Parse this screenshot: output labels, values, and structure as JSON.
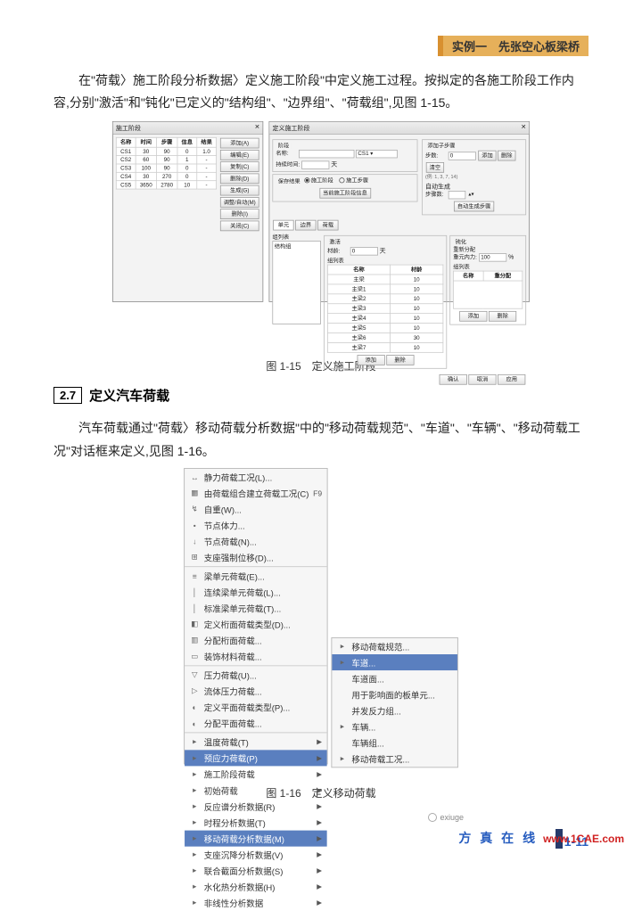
{
  "header": {
    "title": "实例一　先张空心板梁桥"
  },
  "para1": "在\"荷载〉施工阶段分析数据〉定义施工阶段\"中定义施工过程。按拟定的各施工阶段工作内容,分别\"激活\"和\"钝化\"已定义的\"结构组\"、\"边界组\"、\"荷载组\",见图 1-15。",
  "dlg115": {
    "leftTitle": "施工阶段",
    "tableHeaders": [
      "名称",
      "时间",
      "步骤",
      "信息",
      "结果"
    ],
    "tableRows": [
      [
        "CS1",
        "30",
        "90",
        "0",
        "1.0"
      ],
      [
        "CS2",
        "60",
        "90",
        "1",
        "-"
      ],
      [
        "CS3",
        "100",
        "90",
        "0",
        "-"
      ],
      [
        "CS4",
        "30",
        "270",
        "0",
        "-"
      ],
      [
        "CS5",
        "3650",
        "2780",
        "10",
        "-"
      ]
    ],
    "leftButtons": [
      "添加(A)",
      "编辑(E)",
      "复制(C)",
      "删除(D)",
      "生成(G)",
      "调整/自动(M)",
      "删除(I)",
      "关闭(C)"
    ],
    "rightTitle": "定义施工阶段",
    "stage": {
      "label": "阶段",
      "name": "名称:",
      "nameVal": "",
      "durLabel": "持续时间:",
      "durVal": "",
      "days": "天"
    },
    "save": {
      "label": "保存结果",
      "opt1": "施工阶段",
      "opt2": "施工步骤",
      "btn": "当前施工阶段信息"
    },
    "addStep": {
      "title": "添加子步骤",
      "stepCount": "步数:",
      "stepVal": "0",
      "ex": "(例: 1, 3, 7, 14)",
      "autoGen": "自动生成",
      "stepNum": "步骤数:",
      "btns": [
        "添加",
        "删除",
        "清空"
      ],
      "autoBtn": "自动生成步骤"
    },
    "tabs": [
      "单元",
      "边界",
      "荷载"
    ],
    "groupList": "组列表",
    "activate": {
      "title": "激活",
      "life": "材龄:",
      "lifeVal": "0",
      "days": "天",
      "listTitle": "组列表",
      "cols": [
        "名称",
        "材龄"
      ],
      "rows": [
        [
          "主梁",
          "10"
        ],
        [
          "主梁1",
          "10"
        ],
        [
          "主梁2",
          "10"
        ],
        [
          "主梁3",
          "10"
        ],
        [
          "主梁4",
          "10"
        ],
        [
          "主梁5",
          "10"
        ],
        [
          "主梁6",
          "30"
        ],
        [
          "主梁7",
          "10"
        ]
      ],
      "btns": [
        "添加",
        "删除"
      ]
    },
    "deactivate": {
      "title": "钝化",
      "redis": "重新分配",
      "force": "重元内力:",
      "val": "100",
      "pct": "%",
      "listTitle": "组列表",
      "cols": [
        "名称",
        "重分配"
      ],
      "btns": [
        "添加",
        "删除"
      ]
    },
    "footerBtns": [
      "确认",
      "取消",
      "应用"
    ]
  },
  "cap115": "图 1-15　定义施工阶段",
  "section": {
    "num": "2.7",
    "title": "定义汽车荷载"
  },
  "para2": "汽车荷载通过\"荷载〉移动荷载分析数据\"中的\"移动荷载规范\"、\"车道\"、\"车辆\"、\"移动荷载工况\"对话框来定义,见图 1-16。",
  "menu": {
    "items": [
      {
        "ico": "↔",
        "label": "静力荷载工况(L)..."
      },
      {
        "ico": "▦",
        "label": "由荷载组合建立荷载工况(C)",
        "sc": "F9"
      },
      {
        "ico": "↯",
        "label": "自重(W)..."
      },
      {
        "ico": "•",
        "label": "节点体力..."
      },
      {
        "ico": "↓",
        "label": "节点荷载(N)..."
      },
      {
        "ico": "⊞",
        "label": "支座强制位移(D)..."
      },
      {
        "sep": true
      },
      {
        "ico": "≡",
        "label": "梁单元荷载(E)..."
      },
      {
        "ico": "│",
        "label": "连续梁单元荷载(L)..."
      },
      {
        "ico": "│",
        "label": "标准梁单元荷载(T)..."
      },
      {
        "ico": "◧",
        "label": "定义桁面荷载类型(D)..."
      },
      {
        "ico": "▥",
        "label": "分配桁面荷载..."
      },
      {
        "ico": "▭",
        "label": "装饰材料荷载..."
      },
      {
        "sep": true
      },
      {
        "ico": "▽",
        "label": "压力荷载(U)..."
      },
      {
        "ico": "▷",
        "label": "流体压力荷载..."
      },
      {
        "ico": "◐",
        "label": "定义平面荷载类型(P)..."
      },
      {
        "ico": "◐",
        "label": "分配平面荷载..."
      },
      {
        "sep": true
      },
      {
        "ico": "▸",
        "label": "温度荷载(T)",
        "arrow": true
      },
      {
        "ico": "▸",
        "label": "预应力荷载(P)",
        "arrow": true,
        "hl": true
      },
      {
        "ico": "▸",
        "label": "施工阶段荷载",
        "arrow": true
      },
      {
        "ico": "▸",
        "label": "初始荷载",
        "arrow": true
      },
      {
        "ico": "▸",
        "label": "反应谱分析数据(R)",
        "arrow": true
      },
      {
        "ico": "▸",
        "label": "时程分析数据(T)",
        "arrow": true
      },
      {
        "ico": "▸",
        "label": "移动荷载分析数据(M)",
        "arrow": true,
        "hl": true
      },
      {
        "ico": "▸",
        "label": "支座沉降分析数据(V)",
        "arrow": true
      },
      {
        "ico": "▸",
        "label": "联合截面分析数据(S)",
        "arrow": true
      },
      {
        "ico": "▸",
        "label": "水化热分析数据(H)",
        "arrow": true
      },
      {
        "ico": "▸",
        "label": "非线性分析数据",
        "arrow": true
      }
    ],
    "sub": [
      {
        "ico": "▸",
        "label": "移动荷载规范..."
      },
      {
        "ico": "▸",
        "label": "车道...",
        "hl": true
      },
      {
        "ico": "",
        "label": "车道面..."
      },
      {
        "ico": "",
        "label": "用于影响面的板单元..."
      },
      {
        "ico": "",
        "label": "并发反力组..."
      },
      {
        "ico": "▸",
        "label": "车辆..."
      },
      {
        "ico": "",
        "label": "车辆组..."
      },
      {
        "ico": "▸",
        "label": "移动荷载工况..."
      }
    ]
  },
  "cap116": "图 1-16　定义移动荷载",
  "footer": {
    "page": "1-11",
    "brand": "方 真 在 线",
    "url": "www.1CAE.com",
    "wx": "exiuge"
  }
}
